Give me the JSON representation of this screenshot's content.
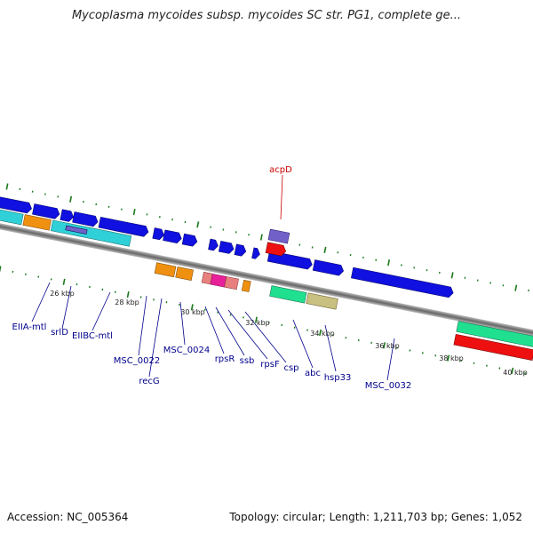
{
  "title": "Mycoplasma mycoides subsp. mycoides SC str. PG1, complete ge...",
  "footer": {
    "accession": "Accession: NC_005364",
    "stats": "Topology: circular; Length: 1,211,703 bp; Genes: 1,052"
  },
  "ticks": [
    "26 kbp",
    "28 kbp",
    "30 kbp",
    "32 kbp",
    "34 kbp",
    "36 kbp",
    "38 kbp",
    "40 kbp"
  ],
  "gene_labels": {
    "acpD": "acpD",
    "EIIA_mtl": "EIIA-mtl",
    "srlD": "srlD",
    "EIIBC_mtl": "EIIBC-mtl",
    "MSC_0022": "MSC_0022",
    "recG": "recG",
    "MSC_0024": "MSC_0024",
    "rpsR": "rpsR",
    "ssb": "ssb",
    "rpsF": "rpsF",
    "csp": "csp",
    "abc": "abc",
    "hsp33": "hsp33",
    "MSC_0032": "MSC_0032"
  },
  "colors": {
    "blue": "#1010e0",
    "orange": "#f09010",
    "cyan": "#30d0d8",
    "red": "#ee1010",
    "green": "#20e090",
    "pink": "#e88080",
    "magenta": "#e8209a",
    "khaki": "#c8c080",
    "purple": "#7060c8",
    "tick": "#1a7a1a"
  }
}
